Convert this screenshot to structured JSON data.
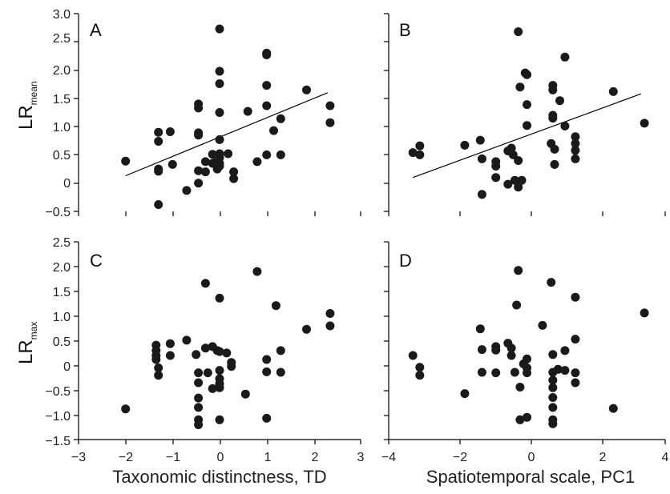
{
  "colors": {
    "point": "#1a1a1a",
    "axis": "#000000",
    "text": "#222222"
  },
  "axes": {
    "top_ylabel": {
      "main": "LR",
      "sub": "mean"
    },
    "bottom_ylabel": {
      "main": "LR",
      "sub": "max"
    },
    "left_xlabel": "Taxonomic distinctness, TD",
    "right_xlabel": "Spatiotemporal scale, PC1",
    "y_top_ticks": [
      "3.0",
      "2.5",
      "2.0",
      "1.5",
      "1.0",
      "0.5",
      "0",
      "−0.5"
    ],
    "y_bottom_ticks": [
      "2.5",
      "2.0",
      "1.5",
      "1.0",
      "0.5",
      "0",
      "−0.5",
      "−1.0",
      "−1.5"
    ],
    "x_left_ticks": [
      "−3",
      "−2",
      "−1",
      "0",
      "1",
      "2",
      "3"
    ],
    "x_right_ticks": [
      "−4",
      "−2",
      "0",
      "2",
      "4"
    ]
  },
  "chart_data": [
    {
      "type": "scatter",
      "panel": "A",
      "xlim": [
        -3,
        3
      ],
      "ylim": [
        -0.5,
        3.0
      ],
      "regression": {
        "x": [
          -2.0,
          2.3
        ],
        "y": [
          0.13,
          1.6
        ]
      },
      "points": [
        [
          -2.0,
          0.39
        ],
        [
          -1.3,
          0.9
        ],
        [
          -1.3,
          0.74
        ],
        [
          -1.3,
          0.25
        ],
        [
          -1.3,
          0.21
        ],
        [
          -1.05,
          0.91
        ],
        [
          -1.0,
          0.33
        ],
        [
          -1.3,
          -0.38
        ],
        [
          -0.7,
          -0.13
        ],
        [
          -0.45,
          1.4
        ],
        [
          -0.45,
          1.33
        ],
        [
          -0.45,
          0.89
        ],
        [
          -0.45,
          0.85
        ],
        [
          -0.45,
          0.22
        ],
        [
          -0.45,
          0.0
        ],
        [
          -0.3,
          0.38
        ],
        [
          -0.3,
          0.2
        ],
        [
          -0.15,
          0.51
        ],
        [
          -0.15,
          0.35
        ],
        [
          -0.05,
          0.25
        ],
        [
          -0.1,
          0.36
        ],
        [
          0.0,
          2.73
        ],
        [
          0.0,
          1.98
        ],
        [
          0.0,
          1.76
        ],
        [
          0.0,
          1.25
        ],
        [
          0.0,
          0.77
        ],
        [
          0.0,
          0.52
        ],
        [
          0.0,
          0.45
        ],
        [
          0.0,
          0.35
        ],
        [
          0.0,
          0.3
        ],
        [
          0.18,
          0.52
        ],
        [
          0.3,
          0.2
        ],
        [
          0.3,
          0.08
        ],
        [
          0.6,
          1.27
        ],
        [
          0.8,
          0.38
        ],
        [
          1.0,
          2.3
        ],
        [
          1.0,
          2.27
        ],
        [
          1.0,
          1.73
        ],
        [
          1.0,
          1.37
        ],
        [
          1.0,
          0.5
        ],
        [
          1.15,
          0.93
        ],
        [
          1.3,
          1.14
        ],
        [
          1.3,
          0.5
        ],
        [
          1.85,
          1.65
        ],
        [
          2.35,
          1.37
        ],
        [
          2.35,
          1.07
        ]
      ]
    },
    {
      "type": "scatter",
      "panel": "B",
      "xlim": [
        -4,
        4
      ],
      "ylim": [
        -0.5,
        3.0
      ],
      "regression": {
        "x": [
          -3.3,
          3.3
        ],
        "y": [
          0.1,
          1.58
        ]
      },
      "points": [
        [
          -3.3,
          0.54
        ],
        [
          -3.1,
          0.66
        ],
        [
          -3.1,
          0.5
        ],
        [
          -1.8,
          0.67
        ],
        [
          -1.35,
          0.76
        ],
        [
          -1.3,
          0.43
        ],
        [
          -1.3,
          -0.2
        ],
        [
          -0.9,
          0.38
        ],
        [
          -0.9,
          0.3
        ],
        [
          -0.9,
          0.1
        ],
        [
          -0.55,
          0.57
        ],
        [
          -0.45,
          0.62
        ],
        [
          -0.55,
          -0.02
        ],
        [
          -0.4,
          0.5
        ],
        [
          -0.35,
          0.05
        ],
        [
          -0.25,
          0.4
        ],
        [
          -0.25,
          -0.07
        ],
        [
          -0.15,
          0.05
        ],
        [
          -0.25,
          2.68
        ],
        [
          -0.2,
          1.7
        ],
        [
          -0.05,
          1.95
        ],
        [
          0.0,
          1.92
        ],
        [
          0.0,
          1.39
        ],
        [
          0.0,
          1.02
        ],
        [
          0.7,
          0.7
        ],
        [
          0.75,
          1.73
        ],
        [
          0.75,
          1.65
        ],
        [
          0.75,
          1.2
        ],
        [
          0.75,
          1.15
        ],
        [
          0.8,
          0.6
        ],
        [
          0.8,
          0.33
        ],
        [
          0.95,
          1.46
        ],
        [
          1.1,
          2.23
        ],
        [
          1.1,
          1.01
        ],
        [
          1.4,
          0.82
        ],
        [
          1.4,
          0.7
        ],
        [
          1.4,
          0.58
        ],
        [
          1.4,
          0.43
        ],
        [
          2.5,
          1.62
        ],
        [
          3.4,
          1.06
        ]
      ]
    },
    {
      "type": "scatter",
      "panel": "C",
      "xlim": [
        -3,
        3
      ],
      "ylim": [
        -1.5,
        2.5
      ],
      "points": [
        [
          -2.0,
          -0.88
        ],
        [
          -1.35,
          0.41
        ],
        [
          -1.35,
          0.3
        ],
        [
          -1.35,
          0.2
        ],
        [
          -1.35,
          0.12
        ],
        [
          -1.3,
          -0.05
        ],
        [
          -1.3,
          -0.2
        ],
        [
          -1.05,
          0.44
        ],
        [
          -1.05,
          0.2
        ],
        [
          -0.7,
          0.51
        ],
        [
          -0.5,
          0.22
        ],
        [
          -0.45,
          -0.15
        ],
        [
          -0.45,
          -0.35
        ],
        [
          -0.45,
          -0.66
        ],
        [
          -0.45,
          -0.85
        ],
        [
          -0.45,
          -1.1
        ],
        [
          -0.45,
          -1.2
        ],
        [
          -0.3,
          1.66
        ],
        [
          -0.3,
          0.35
        ],
        [
          -0.25,
          -0.15
        ],
        [
          -0.15,
          0.38
        ],
        [
          -0.05,
          0.3
        ],
        [
          -0.15,
          -0.47
        ],
        [
          0.0,
          1.36
        ],
        [
          0.0,
          0.28
        ],
        [
          0.0,
          -0.1
        ],
        [
          0.0,
          -0.27
        ],
        [
          0.0,
          -0.37
        ],
        [
          0.0,
          -0.45
        ],
        [
          0.0,
          -1.1
        ],
        [
          0.15,
          0.25
        ],
        [
          0.25,
          0.06
        ],
        [
          0.25,
          -0.02
        ],
        [
          0.55,
          -0.58
        ],
        [
          0.8,
          1.9
        ],
        [
          1.0,
          0.12
        ],
        [
          1.0,
          -0.13
        ],
        [
          1.0,
          -1.07
        ],
        [
          1.2,
          1.21
        ],
        [
          1.3,
          0.3
        ],
        [
          1.3,
          -0.14
        ],
        [
          1.85,
          0.73
        ],
        [
          2.35,
          1.05
        ],
        [
          2.35,
          0.8
        ]
      ]
    },
    {
      "type": "scatter",
      "panel": "D",
      "xlim": [
        -4,
        4
      ],
      "ylim": [
        -1.5,
        2.5
      ],
      "points": [
        [
          -3.3,
          0.2
        ],
        [
          -3.1,
          -0.04
        ],
        [
          -3.1,
          -0.2
        ],
        [
          -1.8,
          -0.57
        ],
        [
          -1.35,
          0.74
        ],
        [
          -1.3,
          0.32
        ],
        [
          -1.3,
          -0.14
        ],
        [
          -0.9,
          0.38
        ],
        [
          -0.9,
          0.31
        ],
        [
          -0.9,
          -0.15
        ],
        [
          -0.55,
          0.45
        ],
        [
          -0.45,
          0.35
        ],
        [
          -0.45,
          0.2
        ],
        [
          -0.35,
          -0.14
        ],
        [
          -0.25,
          1.92
        ],
        [
          -0.3,
          1.22
        ],
        [
          -0.2,
          -0.44
        ],
        [
          -0.2,
          -1.1
        ],
        [
          -0.1,
          0.03
        ],
        [
          0.0,
          0.13
        ],
        [
          0.0,
          -0.15
        ],
        [
          0.0,
          -0.05
        ],
        [
          0.0,
          -1.05
        ],
        [
          0.45,
          0.81
        ],
        [
          0.7,
          1.68
        ],
        [
          0.75,
          0.22
        ],
        [
          0.75,
          -0.14
        ],
        [
          0.75,
          -0.3
        ],
        [
          0.75,
          -0.45
        ],
        [
          0.75,
          -0.65
        ],
        [
          0.75,
          -0.85
        ],
        [
          0.75,
          -1.1
        ],
        [
          0.75,
          -1.18
        ],
        [
          0.9,
          -0.08
        ],
        [
          1.1,
          0.3
        ],
        [
          1.1,
          -0.1
        ],
        [
          1.4,
          1.38
        ],
        [
          1.4,
          0.53
        ],
        [
          1.4,
          -0.15
        ],
        [
          1.4,
          -0.35
        ],
        [
          2.5,
          -0.87
        ],
        [
          3.4,
          1.06
        ]
      ]
    }
  ]
}
